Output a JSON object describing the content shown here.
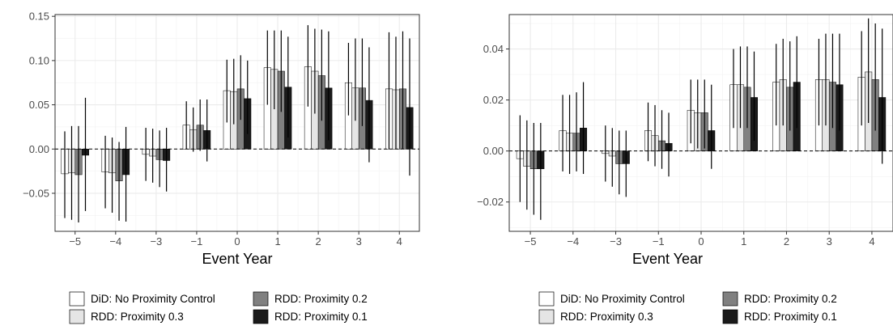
{
  "legend": {
    "entries": [
      {
        "label": "DiD: No Proximity Control",
        "color": "#ffffff"
      },
      {
        "label": "RDD: Proximity 0.3",
        "color": "#e5e5e5"
      },
      {
        "label": "RDD: Proximity 0.2",
        "color": "#808080"
      },
      {
        "label": "RDD: Proximity 0.1",
        "color": "#1a1a1a"
      }
    ]
  },
  "chart_data": [
    {
      "type": "bar",
      "title": "",
      "xlabel": "Event Year",
      "ylabel": "",
      "categories": [
        "−5",
        "−4",
        "−3",
        "−1",
        "0",
        "1",
        "2",
        "3",
        "4"
      ],
      "ylim": [
        -0.093,
        0.152
      ],
      "yticks": [
        -0.05,
        0.0,
        0.05,
        0.1,
        0.15
      ],
      "ytick_labels": [
        "−0.05",
        "0.00",
        "0.05",
        "0.10",
        "0.15"
      ],
      "reference_line": 0,
      "grid": true,
      "series": [
        {
          "values": [
            -0.028,
            -0.026,
            -0.006,
            0.027,
            0.066,
            0.092,
            0.093,
            0.075,
            0.068
          ],
          "ci_low": [
            -0.078,
            -0.067,
            -0.036,
            0.0,
            0.03,
            0.05,
            0.048,
            0.038,
            0.0
          ],
          "ci_high": [
            0.02,
            0.015,
            0.024,
            0.054,
            0.101,
            0.134,
            0.14,
            0.12,
            0.132
          ]
        },
        {
          "values": [
            -0.027,
            -0.027,
            -0.008,
            0.022,
            0.065,
            0.09,
            0.088,
            0.069,
            0.067
          ],
          "ci_low": [
            -0.08,
            -0.072,
            -0.038,
            -0.003,
            0.028,
            0.045,
            0.04,
            0.032,
            0.0
          ],
          "ci_high": [
            0.026,
            0.013,
            0.023,
            0.047,
            0.102,
            0.134,
            0.136,
            0.125,
            0.127
          ]
        },
        {
          "values": [
            -0.029,
            -0.036,
            -0.012,
            0.027,
            0.068,
            0.088,
            0.083,
            0.069,
            0.068
          ],
          "ci_low": [
            -0.083,
            -0.081,
            -0.043,
            -0.002,
            0.033,
            0.042,
            0.032,
            0.026,
            0.0
          ],
          "ci_high": [
            0.026,
            0.008,
            0.021,
            0.056,
            0.106,
            0.134,
            0.135,
            0.125,
            0.133
          ]
        },
        {
          "values": [
            -0.007,
            -0.029,
            -0.013,
            0.021,
            0.057,
            0.07,
            0.069,
            0.055,
            0.047
          ],
          "ci_low": [
            -0.07,
            -0.082,
            -0.048,
            -0.014,
            0.017,
            0.013,
            0.01,
            -0.015,
            -0.03
          ],
          "ci_high": [
            0.058,
            0.025,
            0.024,
            0.056,
            0.1,
            0.127,
            0.133,
            0.115,
            0.125
          ]
        }
      ]
    },
    {
      "type": "bar",
      "title": "",
      "xlabel": "Event Year",
      "ylabel": "",
      "categories": [
        "−5",
        "−4",
        "−3",
        "−1",
        "0",
        "1",
        "2",
        "3",
        "4"
      ],
      "ylim": [
        -0.0315,
        0.0535
      ],
      "yticks": [
        -0.02,
        0.0,
        0.02,
        0.04
      ],
      "ytick_labels": [
        "−0.02",
        "0.00",
        "0.02",
        "0.04"
      ],
      "reference_line": 0,
      "grid": true,
      "series": [
        {
          "values": [
            -0.003,
            0.008,
            -0.001,
            0.008,
            0.016,
            0.026,
            0.027,
            0.028,
            0.029
          ],
          "ci_low": [
            -0.02,
            -0.008,
            -0.012,
            -0.004,
            0.003,
            0.009,
            0.01,
            0.01,
            0.01
          ],
          "ci_high": [
            0.014,
            0.022,
            0.01,
            0.019,
            0.028,
            0.04,
            0.042,
            0.044,
            0.047
          ]
        },
        {
          "values": [
            -0.006,
            0.007,
            -0.002,
            0.006,
            0.015,
            0.026,
            0.028,
            0.028,
            0.031
          ],
          "ci_low": [
            -0.023,
            -0.009,
            -0.014,
            -0.006,
            0.001,
            0.009,
            0.01,
            0.01,
            0.011
          ],
          "ci_high": [
            0.012,
            0.022,
            0.009,
            0.018,
            0.028,
            0.041,
            0.044,
            0.046,
            0.052
          ]
        },
        {
          "values": [
            -0.007,
            0.007,
            -0.005,
            0.004,
            0.015,
            0.025,
            0.025,
            0.027,
            0.028
          ],
          "ci_low": [
            -0.025,
            -0.008,
            -0.017,
            -0.007,
            0.001,
            0.009,
            0.008,
            0.009,
            0.008
          ],
          "ci_high": [
            0.011,
            0.023,
            0.008,
            0.016,
            0.028,
            0.041,
            0.043,
            0.046,
            0.05
          ]
        },
        {
          "values": [
            -0.007,
            0.009,
            -0.005,
            0.003,
            0.008,
            0.021,
            0.027,
            0.026,
            0.021
          ],
          "ci_low": [
            -0.027,
            -0.009,
            -0.018,
            -0.01,
            -0.007,
            0.004,
            0.009,
            0.008,
            -0.005
          ],
          "ci_high": [
            0.011,
            0.027,
            0.008,
            0.015,
            0.026,
            0.039,
            0.045,
            0.046,
            0.048
          ]
        }
      ]
    }
  ]
}
